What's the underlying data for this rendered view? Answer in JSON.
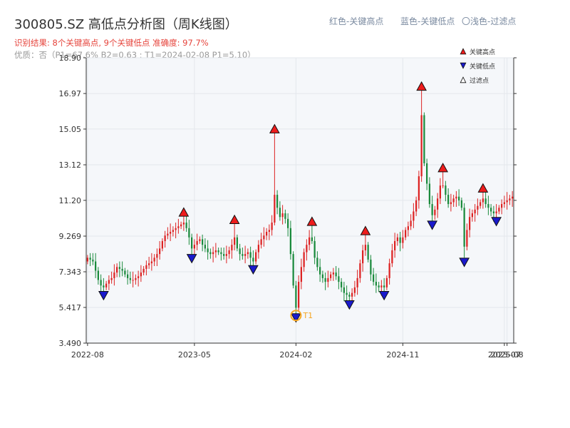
{
  "header": {
    "title": "300805.SZ 高低点分析图（周K线图）",
    "legend_red": "红色-关键高点",
    "legend_blue": "蓝色-关键低点",
    "legend_filtered": "〇浅色-过滤点",
    "result": "识别结果: 8个关键高点, 9个关键低点  准确度: 97.7%",
    "quality": "优质：否（P1=67.6%  B2=0.63 ; T1=2024-02-08 P1=5.10）"
  },
  "chart_data": {
    "type": "candlestick",
    "y_ticks": [
      "3.490",
      "5.417",
      "7.343",
      "9.269",
      "11.20",
      "13.12",
      "15.05",
      "16.97",
      "18.90"
    ],
    "ylim": [
      3.49,
      18.9
    ],
    "x_ticks": [
      "2022-08",
      "2023-05",
      "2024-02",
      "2024-11",
      "2025-07",
      "2025-08"
    ],
    "x_tick_weeks": [
      0,
      40,
      78,
      118,
      156,
      157
    ],
    "n_weeks": 160,
    "legend": [
      "关键高点",
      "关键低点",
      "过滤点"
    ],
    "annotation": "T1",
    "key_highs": [
      {
        "week": 36,
        "value": 10.4
      },
      {
        "week": 55,
        "value": 10.0
      },
      {
        "week": 70,
        "value": 14.9
      },
      {
        "week": 84,
        "value": 9.9
      },
      {
        "week": 104,
        "value": 9.4
      },
      {
        "week": 125,
        "value": 17.2
      },
      {
        "week": 133,
        "value": 12.8
      },
      {
        "week": 148,
        "value": 11.7
      }
    ],
    "key_lows": [
      {
        "week": 6,
        "value": 6.3
      },
      {
        "week": 39,
        "value": 8.3
      },
      {
        "week": 62,
        "value": 7.7
      },
      {
        "week": 78,
        "value": 5.1
      },
      {
        "week": 98,
        "value": 5.8
      },
      {
        "week": 111,
        "value": 6.3
      },
      {
        "week": 129,
        "value": 10.1
      },
      {
        "week": 141,
        "value": 8.1
      },
      {
        "week": 153,
        "value": 10.3
      }
    ],
    "t1": {
      "week": 78,
      "value": 5.1
    },
    "close": [
      8.1,
      8.0,
      7.9,
      7.4,
      6.9,
      6.6,
      6.5,
      6.7,
      6.9,
      7.0,
      7.3,
      7.6,
      7.5,
      7.4,
      7.2,
      7.0,
      6.9,
      6.9,
      7.0,
      7.1,
      7.3,
      7.5,
      7.7,
      7.8,
      7.9,
      8.1,
      8.3,
      8.6,
      9.0,
      9.3,
      9.4,
      9.5,
      9.6,
      9.7,
      9.8,
      9.9,
      10.0,
      9.7,
      9.2,
      8.6,
      8.8,
      9.0,
      9.1,
      8.8,
      8.6,
      8.4,
      8.3,
      8.4,
      8.5,
      8.4,
      8.3,
      8.2,
      8.3,
      8.5,
      8.8,
      9.2,
      8.6,
      8.3,
      8.2,
      8.3,
      8.4,
      8.1,
      7.9,
      8.4,
      8.8,
      9.1,
      9.3,
      9.5,
      9.6,
      10.0,
      11.5,
      10.8,
      10.3,
      10.5,
      10.2,
      9.7,
      8.3,
      6.6,
      5.4,
      6.8,
      7.6,
      8.4,
      8.8,
      9.2,
      9.0,
      8.1,
      7.6,
      7.2,
      7.0,
      6.8,
      7.0,
      7.2,
      7.3,
      7.1,
      6.8,
      6.5,
      6.2,
      6.1,
      6.0,
      6.2,
      6.5,
      7.0,
      7.8,
      8.5,
      8.8,
      8.0,
      7.2,
      6.8,
      6.6,
      6.5,
      6.6,
      6.5,
      7.0,
      7.8,
      8.5,
      9.0,
      9.2,
      8.9,
      9.2,
      9.6,
      9.8,
      10.1,
      10.6,
      11.2,
      12.5,
      15.8,
      13.2,
      12.1,
      11.0,
      10.4,
      10.7,
      11.3,
      12.0,
      12.0,
      11.5,
      11.0,
      11.1,
      11.3,
      11.4,
      11.2,
      10.8,
      8.7,
      9.6,
      10.3,
      10.5,
      10.7,
      10.9,
      11.1,
      11.3,
      11.0,
      10.8,
      10.6,
      10.5,
      10.6,
      10.8,
      11.0,
      11.1,
      11.2,
      11.3,
      11.4
    ],
    "colors": {
      "up": "#dd2222",
      "down": "#1a8a3c",
      "high_marker": "#ee1c1c",
      "low_marker": "#1a1acc",
      "t1_circle": "#f5a623",
      "plot_bg": "#f5f7fa"
    }
  }
}
